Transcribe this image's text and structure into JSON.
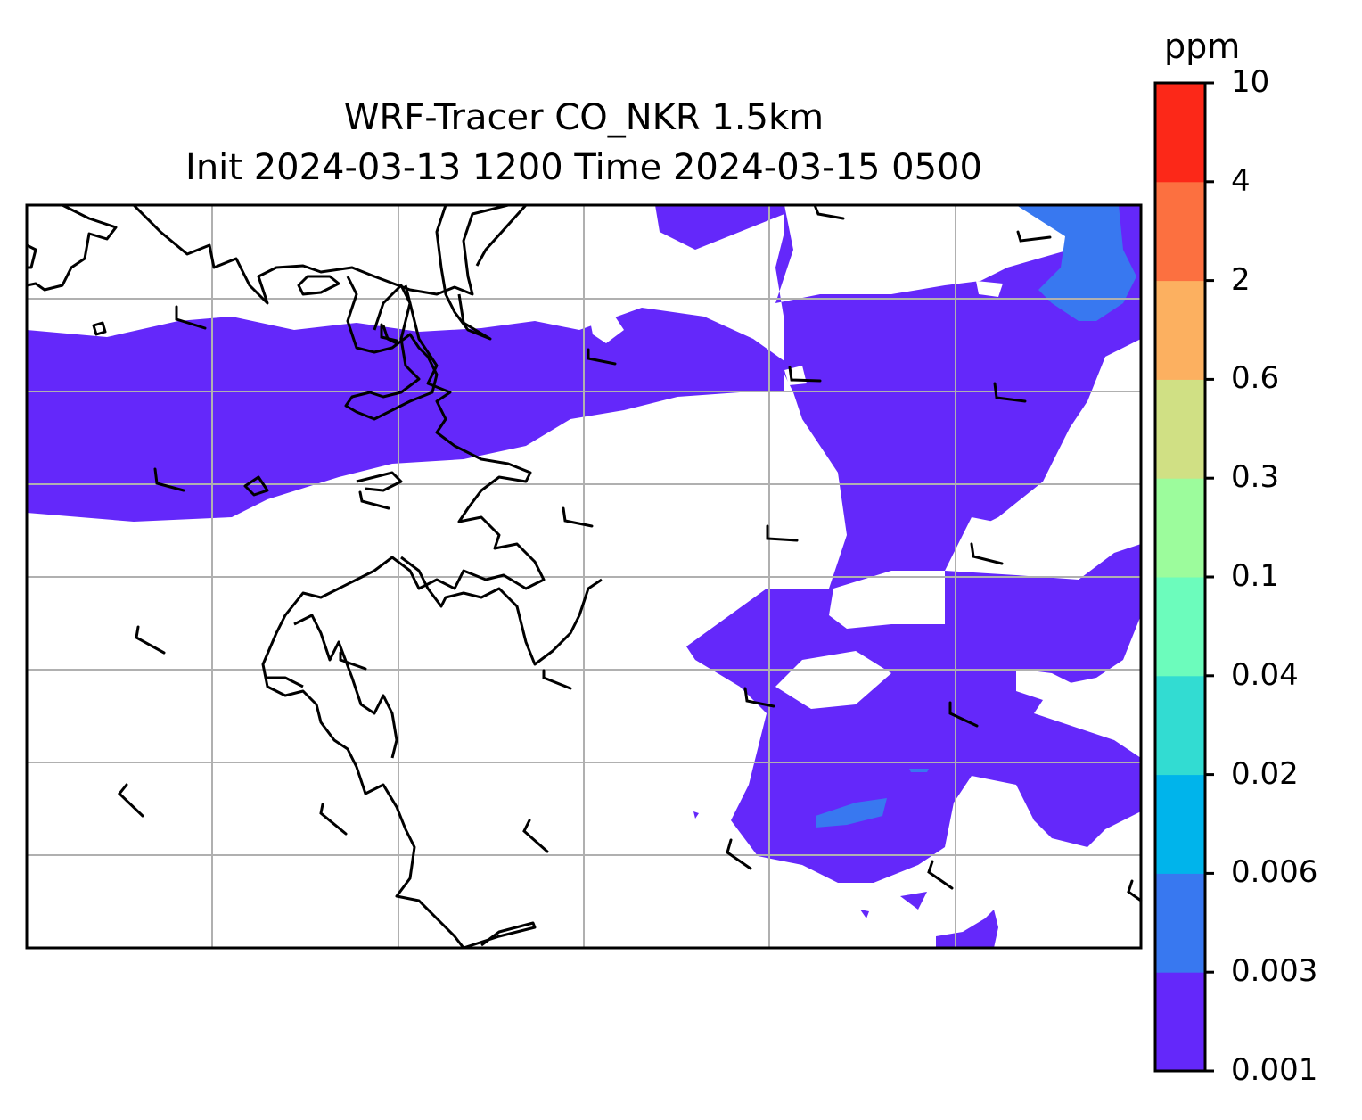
{
  "title_line1": "WRF-Tracer CO_NKR 1.5km",
  "title_line2": "Init 2024-03-13 1200 Time 2024-03-15 0500",
  "colorbar": {
    "unit": "ppm",
    "levels": [
      "0.001",
      "0.003",
      "0.006",
      "0.02",
      "0.04",
      "0.1",
      "0.3",
      "0.6",
      "2",
      "4",
      "10"
    ],
    "colors": [
      "#6428fa",
      "#3878f0",
      "#00b4eb",
      "#32dcd2",
      "#6cfcbc",
      "#9cfc9c",
      "#d0e084",
      "#fcb060",
      "#fc7040",
      "#fc2818"
    ]
  },
  "map": {
    "field_color_low": "#6428fa",
    "field_color_mid": "#3878f0",
    "gridline_color": "#b0b0b0",
    "coastline_color": "#000000"
  }
}
